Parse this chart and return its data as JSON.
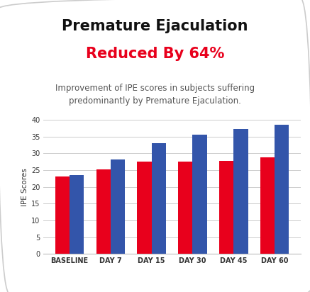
{
  "title_line1": "Premature Ejaculation",
  "title_line2": "Reduced By 64%",
  "subtitle": "Improvement of IPE scores in subjects suffering\npredominantly by Premature Ejaculation.",
  "categories": [
    "BASELINE",
    "DAY 7",
    "DAY 15",
    "DAY 30",
    "DAY 45",
    "DAY 60"
  ],
  "red_values": [
    23.0,
    25.3,
    27.5,
    27.5,
    27.8,
    28.7
  ],
  "blue_values": [
    23.5,
    28.2,
    33.0,
    35.5,
    37.3,
    38.5
  ],
  "red_color": "#e8001c",
  "blue_color": "#3355aa",
  "title_color": "#111111",
  "subtitle_color": "#555555",
  "ylabel": "IPE Scores",
  "ylim": [
    0,
    40
  ],
  "yticks": [
    0,
    5,
    10,
    15,
    20,
    25,
    30,
    35,
    40
  ],
  "background_color": "#ffffff",
  "grid_color": "#cccccc",
  "bar_width": 0.35,
  "title_fontsize": 15,
  "subtitle_fontsize": 8.5,
  "axis_tick_fontsize": 7,
  "ylabel_fontsize": 7.5
}
